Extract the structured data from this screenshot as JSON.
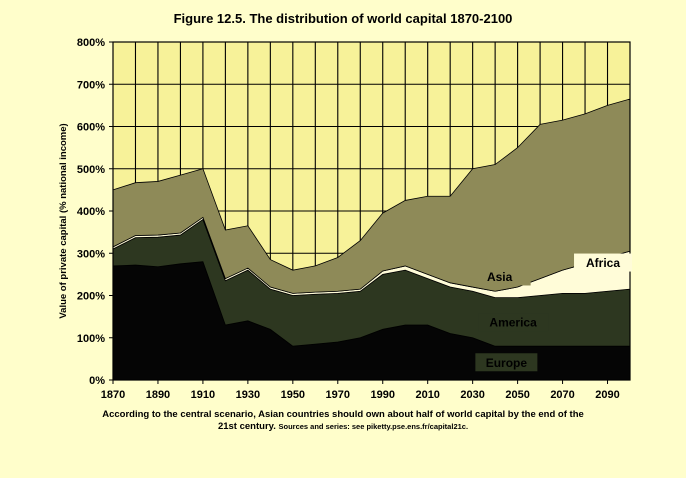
{
  "chart_data": {
    "type": "area",
    "title": "Figure 12.5. The distribution of world capital 1870-2100",
    "xlabel": "",
    "ylabel": "Value of private capital (% national income)",
    "x": [
      1870,
      1880,
      1890,
      1900,
      1910,
      1920,
      1930,
      1940,
      1950,
      1960,
      1970,
      1980,
      1990,
      2000,
      2010,
      2020,
      2030,
      2040,
      2050,
      2060,
      2070,
      2080,
      2090,
      2100
    ],
    "x_ticks": [
      "1870",
      "1890",
      "1910",
      "1930",
      "1950",
      "1970",
      "1990",
      "2010",
      "2030",
      "2050",
      "2070",
      "2090"
    ],
    "y_ticks": [
      "0%",
      "100%",
      "200%",
      "300%",
      "400%",
      "500%",
      "600%",
      "700%",
      "800%"
    ],
    "ylim": [
      0,
      800
    ],
    "xlim": [
      1870,
      2100
    ],
    "grid": "vertical and horizontal",
    "stacked": true,
    "colors": {
      "background": "#fffecb",
      "plot_area": "#f7f299",
      "Europe": "#050505",
      "America": "#2d3720",
      "Africa": "#fffcd8",
      "Asia": "#8e8a58"
    },
    "series": [
      {
        "name": "Europe",
        "values": [
          270,
          272,
          268,
          275,
          280,
          130,
          140,
          120,
          80,
          85,
          90,
          100,
          120,
          130,
          130,
          110,
          100,
          80,
          80,
          80,
          80,
          80,
          80,
          80
        ]
      },
      {
        "name": "America",
        "values": [
          40,
          65,
          70,
          68,
          100,
          105,
          120,
          95,
          120,
          118,
          115,
          110,
          130,
          130,
          110,
          110,
          110,
          115,
          115,
          120,
          125,
          125,
          130,
          135
        ]
      },
      {
        "name": "Africa",
        "values": [
          5,
          5,
          5,
          5,
          5,
          5,
          5,
          5,
          5,
          5,
          5,
          5,
          8,
          10,
          10,
          10,
          10,
          15,
          25,
          40,
          55,
          70,
          80,
          90
        ]
      },
      {
        "name": "Asia",
        "values": [
          135,
          125,
          127,
          137,
          115,
          115,
          100,
          65,
          55,
          62,
          80,
          115,
          137,
          155,
          185,
          205,
          280,
          300,
          330,
          365,
          355,
          355,
          360,
          360
        ]
      }
    ],
    "annotations": [
      "Asia",
      "Africa",
      "America",
      "Europe"
    ]
  },
  "caption": {
    "line1": "According to the central scenario, Asian countries should own about half of world capital by the end of the",
    "line2_main": "21st century.",
    "line2_sources": "Sources and series: see piketty.pse.ens.fr/capital21c."
  }
}
